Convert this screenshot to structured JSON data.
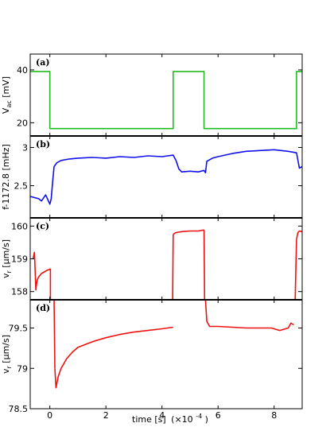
{
  "chart_data": {
    "type": "line",
    "xlabel": "time [s]",
    "xlabel_multiplier": "(×10",
    "xlabel_multiplier_exp": "-4",
    "xlabel_multiplier_close": ")",
    "xlim": [
      -0.7,
      9
    ],
    "xticks": [
      0,
      2,
      4,
      6,
      8
    ],
    "panels": [
      {
        "letter": "(a)",
        "ylabel_main": "V",
        "ylabel_sub": "ac",
        "ylabel_unit": " [mV]",
        "ylim": [
          15,
          46
        ],
        "yticks": [
          20,
          40
        ],
        "color": "#22bb22",
        "series": {
          "x": [
            -0.7,
            0,
            0,
            4.4,
            4.4,
            5.5,
            5.5,
            8.8,
            8.8,
            9
          ],
          "y": [
            39.4,
            39.4,
            17.8,
            17.8,
            39.4,
            39.4,
            17.8,
            17.8,
            39.4,
            39.4
          ]
        }
      },
      {
        "letter": "(b)",
        "ylabel": "f-1172.8 [mHz]",
        "ylim": [
          2.08,
          3.15
        ],
        "yticks": [
          2.5,
          3
        ],
        "ytick_labels": [
          "2.5",
          "3"
        ],
        "color": "#1010ee",
        "series": {
          "x": [
            -0.7,
            -0.4,
            -0.3,
            -0.15,
            0,
            0.05,
            0.1,
            0.15,
            0.25,
            0.4,
            0.7,
            1.0,
            1.5,
            2.0,
            2.5,
            3.0,
            3.5,
            4.0,
            4.4,
            4.5,
            4.6,
            4.7,
            5.0,
            5.3,
            5.5,
            5.55,
            5.6,
            5.8,
            6.0,
            6.5,
            7.0,
            7.5,
            8.0,
            8.5,
            8.8,
            8.9,
            9.0
          ],
          "y": [
            2.36,
            2.33,
            2.3,
            2.38,
            2.26,
            2.33,
            2.55,
            2.75,
            2.8,
            2.83,
            2.85,
            2.86,
            2.87,
            2.86,
            2.88,
            2.87,
            2.89,
            2.88,
            2.9,
            2.83,
            2.72,
            2.68,
            2.69,
            2.68,
            2.7,
            2.67,
            2.82,
            2.86,
            2.88,
            2.92,
            2.95,
            2.96,
            2.97,
            2.95,
            2.93,
            2.73,
            2.75
          ]
        }
      },
      {
        "letter": "(c)",
        "ylabel_main": "v",
        "ylabel_sub": "r",
        "ylabel_unit": " [μm/s]",
        "ylim": [
          157.75,
          160.25
        ],
        "yticks": [
          158,
          159,
          160
        ],
        "color": "#ee1111",
        "segments": [
          {
            "x": [
              -0.6,
              -0.55,
              -0.5,
              -0.48,
              -0.45,
              -0.4,
              -0.3,
              -0.2,
              -0.1,
              0,
              0.02
            ],
            "y": [
              159.0,
              159.2,
              158.05,
              158.2,
              158.35,
              158.45,
              158.55,
              158.6,
              158.65,
              158.68,
              158.7
            ]
          },
          {
            "x": [
              0.02,
              0.02
            ],
            "y": [
              158.7,
              157.75
            ]
          },
          {
            "x": [
              4.38,
              4.4
            ],
            "y": [
              157.75,
              159.75
            ]
          },
          {
            "x": [
              4.4,
              4.5,
              4.7,
              5.0,
              5.3,
              5.5
            ],
            "y": [
              159.75,
              159.8,
              159.83,
              159.85,
              159.85,
              159.88
            ]
          },
          {
            "x": [
              5.5,
              5.52
            ],
            "y": [
              159.88,
              157.75
            ]
          },
          {
            "x": [
              8.75,
              8.8
            ],
            "y": [
              157.75,
              159.6
            ]
          },
          {
            "x": [
              8.8,
              8.85,
              8.9,
              9.0
            ],
            "y": [
              159.6,
              159.8,
              159.85,
              159.83
            ]
          }
        ]
      },
      {
        "letter": "(d)",
        "ylabel_main": "v",
        "ylabel_sub": "r",
        "ylabel_unit": " [μm/s]",
        "ylim": [
          78.5,
          79.85
        ],
        "yticks": [
          78.5,
          79,
          79.5
        ],
        "ytick_labels": [
          "78.5",
          "79",
          "79.5"
        ],
        "color": "#ee1111",
        "segments": [
          {
            "x": [
              0.15,
              0.18
            ],
            "y": [
              79.85,
              79.0
            ]
          },
          {
            "x": [
              0.18,
              0.22,
              0.3,
              0.4,
              0.6,
              0.8,
              1.0,
              1.3,
              1.6,
              2.0,
              2.5,
              3.0,
              3.5,
              4.0,
              4.4
            ],
            "y": [
              79.0,
              78.76,
              78.9,
              79.0,
              79.12,
              79.2,
              79.26,
              79.3,
              79.34,
              79.38,
              79.42,
              79.45,
              79.47,
              79.49,
              79.51
            ]
          },
          {
            "x": [
              5.55,
              5.6
            ],
            "y": [
              79.85,
              79.58
            ]
          },
          {
            "x": [
              5.6,
              5.7,
              6.0,
              6.5,
              7.0,
              7.5,
              7.9,
              8.2,
              8.5,
              8.6,
              8.7
            ],
            "y": [
              79.58,
              79.52,
              79.52,
              79.51,
              79.5,
              79.5,
              79.5,
              79.47,
              79.5,
              79.56,
              79.54
            ]
          }
        ]
      }
    ]
  }
}
